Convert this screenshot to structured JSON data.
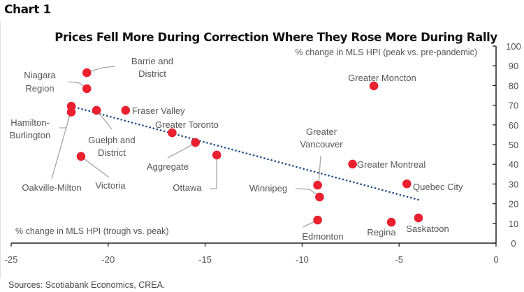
{
  "header": {
    "chart_label": "Chart 1"
  },
  "footer": {
    "source": "Sources: Scotiabank Economics, CREA."
  },
  "chart_data": {
    "type": "scatter",
    "title": "Prices Fell More During Correction Where They Rose More During Rally",
    "xlabel": "% change in MLS HPI (trough vs. peak)",
    "ylabel": "% change in MLS HPI (peak vs. pre-pandemic)",
    "xlim": [
      -25,
      0
    ],
    "ylim": [
      0,
      100
    ],
    "xticks": [
      -25,
      -20,
      -15,
      -10,
      -5,
      0
    ],
    "yticks": [
      0,
      10,
      20,
      30,
      40,
      50,
      60,
      70,
      80,
      90,
      100
    ],
    "y_axis_side": "right",
    "grid": false,
    "marker_color": "#e8202f",
    "trendline_color": "#1f4e8c",
    "trendline": {
      "style": "dotted",
      "from": [
        -21.9,
        69.5
      ],
      "to": [
        -4.0,
        22.0
      ]
    },
    "points": [
      {
        "name": "Barrie and District",
        "x": -21.1,
        "y": 86.5
      },
      {
        "name": "Niagara Region",
        "x": -21.1,
        "y": 78.4
      },
      {
        "name": "Hamilton-Burlington",
        "x": -21.9,
        "y": 69.5
      },
      {
        "name": "Oakville-Milton",
        "x": -21.9,
        "y": 66.5
      },
      {
        "name": "Guelph and District",
        "x": -20.6,
        "y": 67.4
      },
      {
        "name": "Fraser Valley",
        "x": -19.1,
        "y": 67.4
      },
      {
        "name": "Greater Toronto",
        "x": -16.7,
        "y": 56.0
      },
      {
        "name": "Aggregate",
        "x": -15.5,
        "y": 51.1
      },
      {
        "name": "Ottawa",
        "x": -14.4,
        "y": 44.7
      },
      {
        "name": "Victoria",
        "x": -21.4,
        "y": 44.0
      },
      {
        "name": "Greater Vancouver",
        "x": -9.2,
        "y": 29.4
      },
      {
        "name": "Winnipeg",
        "x": -9.1,
        "y": 23.4
      },
      {
        "name": "Edmonton",
        "x": -9.2,
        "y": 11.7
      },
      {
        "name": "Greater Montreal",
        "x": -7.4,
        "y": 40.1
      },
      {
        "name": "Quebec City",
        "x": -4.6,
        "y": 30.1
      },
      {
        "name": "Regina",
        "x": -5.4,
        "y": 10.6
      },
      {
        "name": "Saskatoon",
        "x": -4.0,
        "y": 12.8
      },
      {
        "name": "Greater Moncton",
        "x": -6.3,
        "y": 79.8
      }
    ]
  }
}
